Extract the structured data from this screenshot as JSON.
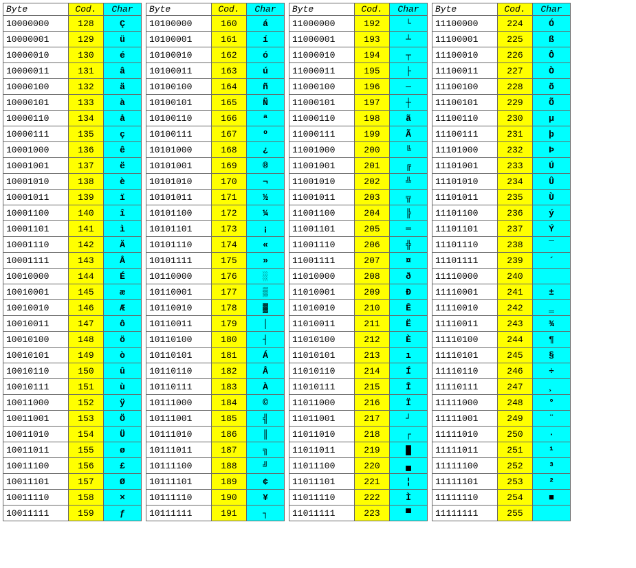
{
  "headers": {
    "byte": "Byte",
    "cod": "Cod.",
    "char": "Char"
  },
  "colors": {
    "byte_bg": "#ffffff",
    "cod_bg": "#ffff00",
    "char_bg": "#00ffff",
    "border": "#666666"
  },
  "tables": [
    [
      {
        "b": "10000000",
        "c": 128,
        "ch": "Ç"
      },
      {
        "b": "10000001",
        "c": 129,
        "ch": "ü"
      },
      {
        "b": "10000010",
        "c": 130,
        "ch": "é"
      },
      {
        "b": "10000011",
        "c": 131,
        "ch": "â"
      },
      {
        "b": "10000100",
        "c": 132,
        "ch": "ä"
      },
      {
        "b": "10000101",
        "c": 133,
        "ch": "à"
      },
      {
        "b": "10000110",
        "c": 134,
        "ch": "å"
      },
      {
        "b": "10000111",
        "c": 135,
        "ch": "ç"
      },
      {
        "b": "10001000",
        "c": 136,
        "ch": "ê"
      },
      {
        "b": "10001001",
        "c": 137,
        "ch": "ë"
      },
      {
        "b": "10001010",
        "c": 138,
        "ch": "è"
      },
      {
        "b": "10001011",
        "c": 139,
        "ch": "ï"
      },
      {
        "b": "10001100",
        "c": 140,
        "ch": "î"
      },
      {
        "b": "10001101",
        "c": 141,
        "ch": "ì"
      },
      {
        "b": "10001110",
        "c": 142,
        "ch": "Ä"
      },
      {
        "b": "10001111",
        "c": 143,
        "ch": "Å"
      },
      {
        "b": "10010000",
        "c": 144,
        "ch": "É"
      },
      {
        "b": "10010001",
        "c": 145,
        "ch": "æ"
      },
      {
        "b": "10010010",
        "c": 146,
        "ch": "Æ"
      },
      {
        "b": "10010011",
        "c": 147,
        "ch": "ô"
      },
      {
        "b": "10010100",
        "c": 148,
        "ch": "ö"
      },
      {
        "b": "10010101",
        "c": 149,
        "ch": "ò"
      },
      {
        "b": "10010110",
        "c": 150,
        "ch": "û"
      },
      {
        "b": "10010111",
        "c": 151,
        "ch": "ù"
      },
      {
        "b": "10011000",
        "c": 152,
        "ch": "ÿ"
      },
      {
        "b": "10011001",
        "c": 153,
        "ch": "Ö"
      },
      {
        "b": "10011010",
        "c": 154,
        "ch": "Ü"
      },
      {
        "b": "10011011",
        "c": 155,
        "ch": "ø"
      },
      {
        "b": "10011100",
        "c": 156,
        "ch": "£"
      },
      {
        "b": "10011101",
        "c": 157,
        "ch": "Ø"
      },
      {
        "b": "10011110",
        "c": 158,
        "ch": "×"
      },
      {
        "b": "10011111",
        "c": 159,
        "ch": "ƒ"
      }
    ],
    [
      {
        "b": "10100000",
        "c": 160,
        "ch": "á"
      },
      {
        "b": "10100001",
        "c": 161,
        "ch": "í"
      },
      {
        "b": "10100010",
        "c": 162,
        "ch": "ó"
      },
      {
        "b": "10100011",
        "c": 163,
        "ch": "ú"
      },
      {
        "b": "10100100",
        "c": 164,
        "ch": "ñ"
      },
      {
        "b": "10100101",
        "c": 165,
        "ch": "Ñ"
      },
      {
        "b": "10100110",
        "c": 166,
        "ch": "ª"
      },
      {
        "b": "10100111",
        "c": 167,
        "ch": "º"
      },
      {
        "b": "10101000",
        "c": 168,
        "ch": "¿"
      },
      {
        "b": "10101001",
        "c": 169,
        "ch": "®"
      },
      {
        "b": "10101010",
        "c": 170,
        "ch": "¬"
      },
      {
        "b": "10101011",
        "c": 171,
        "ch": "½"
      },
      {
        "b": "10101100",
        "c": 172,
        "ch": "¼"
      },
      {
        "b": "10101101",
        "c": 173,
        "ch": "¡"
      },
      {
        "b": "10101110",
        "c": 174,
        "ch": "«"
      },
      {
        "b": "10101111",
        "c": 175,
        "ch": "»"
      },
      {
        "b": "10110000",
        "c": 176,
        "ch": "░"
      },
      {
        "b": "10110001",
        "c": 177,
        "ch": "▒"
      },
      {
        "b": "10110010",
        "c": 178,
        "ch": "▓"
      },
      {
        "b": "10110011",
        "c": 179,
        "ch": "│"
      },
      {
        "b": "10110100",
        "c": 180,
        "ch": "┤"
      },
      {
        "b": "10110101",
        "c": 181,
        "ch": "Á"
      },
      {
        "b": "10110110",
        "c": 182,
        "ch": "Â"
      },
      {
        "b": "10110111",
        "c": 183,
        "ch": "À"
      },
      {
        "b": "10111000",
        "c": 184,
        "ch": "©"
      },
      {
        "b": "10111001",
        "c": 185,
        "ch": "╣"
      },
      {
        "b": "10111010",
        "c": 186,
        "ch": "║"
      },
      {
        "b": "10111011",
        "c": 187,
        "ch": "╗"
      },
      {
        "b": "10111100",
        "c": 188,
        "ch": "╝"
      },
      {
        "b": "10111101",
        "c": 189,
        "ch": "¢"
      },
      {
        "b": "10111110",
        "c": 190,
        "ch": "¥"
      },
      {
        "b": "10111111",
        "c": 191,
        "ch": "┐"
      }
    ],
    [
      {
        "b": "11000000",
        "c": 192,
        "ch": "└"
      },
      {
        "b": "11000001",
        "c": 193,
        "ch": "┴"
      },
      {
        "b": "11000010",
        "c": 194,
        "ch": "┬"
      },
      {
        "b": "11000011",
        "c": 195,
        "ch": "├"
      },
      {
        "b": "11000100",
        "c": 196,
        "ch": "─"
      },
      {
        "b": "11000101",
        "c": 197,
        "ch": "┼"
      },
      {
        "b": "11000110",
        "c": 198,
        "ch": "ã"
      },
      {
        "b": "11000111",
        "c": 199,
        "ch": "Ã"
      },
      {
        "b": "11001000",
        "c": 200,
        "ch": "╚"
      },
      {
        "b": "11001001",
        "c": 201,
        "ch": "╔"
      },
      {
        "b": "11001010",
        "c": 202,
        "ch": "╩"
      },
      {
        "b": "11001011",
        "c": 203,
        "ch": "╦"
      },
      {
        "b": "11001100",
        "c": 204,
        "ch": "╠"
      },
      {
        "b": "11001101",
        "c": 205,
        "ch": "═"
      },
      {
        "b": "11001110",
        "c": 206,
        "ch": "╬"
      },
      {
        "b": "11001111",
        "c": 207,
        "ch": "¤"
      },
      {
        "b": "11010000",
        "c": 208,
        "ch": "ð"
      },
      {
        "b": "11010001",
        "c": 209,
        "ch": "Ð"
      },
      {
        "b": "11010010",
        "c": 210,
        "ch": "Ê"
      },
      {
        "b": "11010011",
        "c": 211,
        "ch": "Ë"
      },
      {
        "b": "11010100",
        "c": 212,
        "ch": "È"
      },
      {
        "b": "11010101",
        "c": 213,
        "ch": "ı"
      },
      {
        "b": "11010110",
        "c": 214,
        "ch": "Í"
      },
      {
        "b": "11010111",
        "c": 215,
        "ch": "Î"
      },
      {
        "b": "11011000",
        "c": 216,
        "ch": "Ï"
      },
      {
        "b": "11011001",
        "c": 217,
        "ch": "┘"
      },
      {
        "b": "11011010",
        "c": 218,
        "ch": "┌"
      },
      {
        "b": "11011011",
        "c": 219,
        "ch": "█"
      },
      {
        "b": "11011100",
        "c": 220,
        "ch": "▄"
      },
      {
        "b": "11011101",
        "c": 221,
        "ch": "¦"
      },
      {
        "b": "11011110",
        "c": 222,
        "ch": "Ì"
      },
      {
        "b": "11011111",
        "c": 223,
        "ch": "▀"
      }
    ],
    [
      {
        "b": "11100000",
        "c": 224,
        "ch": "Ó"
      },
      {
        "b": "11100001",
        "c": 225,
        "ch": "ß"
      },
      {
        "b": "11100010",
        "c": 226,
        "ch": "Ô"
      },
      {
        "b": "11100011",
        "c": 227,
        "ch": "Ò"
      },
      {
        "b": "11100100",
        "c": 228,
        "ch": "õ"
      },
      {
        "b": "11100101",
        "c": 229,
        "ch": "Õ"
      },
      {
        "b": "11100110",
        "c": 230,
        "ch": "µ"
      },
      {
        "b": "11100111",
        "c": 231,
        "ch": "þ"
      },
      {
        "b": "11101000",
        "c": 232,
        "ch": "Þ"
      },
      {
        "b": "11101001",
        "c": 233,
        "ch": "Ú"
      },
      {
        "b": "11101010",
        "c": 234,
        "ch": "Û"
      },
      {
        "b": "11101011",
        "c": 235,
        "ch": "Ù"
      },
      {
        "b": "11101100",
        "c": 236,
        "ch": "ý"
      },
      {
        "b": "11101101",
        "c": 237,
        "ch": "Ý"
      },
      {
        "b": "11101110",
        "c": 238,
        "ch": "¯"
      },
      {
        "b": "11101111",
        "c": 239,
        "ch": "´"
      },
      {
        "b": "11110000",
        "c": 240,
        "ch": "­"
      },
      {
        "b": "11110001",
        "c": 241,
        "ch": "±"
      },
      {
        "b": "11110010",
        "c": 242,
        "ch": "‗"
      },
      {
        "b": "11110011",
        "c": 243,
        "ch": "¾"
      },
      {
        "b": "11110100",
        "c": 244,
        "ch": "¶"
      },
      {
        "b": "11110101",
        "c": 245,
        "ch": "§"
      },
      {
        "b": "11110110",
        "c": 246,
        "ch": "÷"
      },
      {
        "b": "11110111",
        "c": 247,
        "ch": "¸"
      },
      {
        "b": "11111000",
        "c": 248,
        "ch": "°"
      },
      {
        "b": "11111001",
        "c": 249,
        "ch": "¨"
      },
      {
        "b": "11111010",
        "c": 250,
        "ch": "·"
      },
      {
        "b": "11111011",
        "c": 251,
        "ch": "¹"
      },
      {
        "b": "11111100",
        "c": 252,
        "ch": "³"
      },
      {
        "b": "11111101",
        "c": 253,
        "ch": "²"
      },
      {
        "b": "11111110",
        "c": 254,
        "ch": "■"
      },
      {
        "b": "11111111",
        "c": 255,
        "ch": " "
      }
    ]
  ]
}
